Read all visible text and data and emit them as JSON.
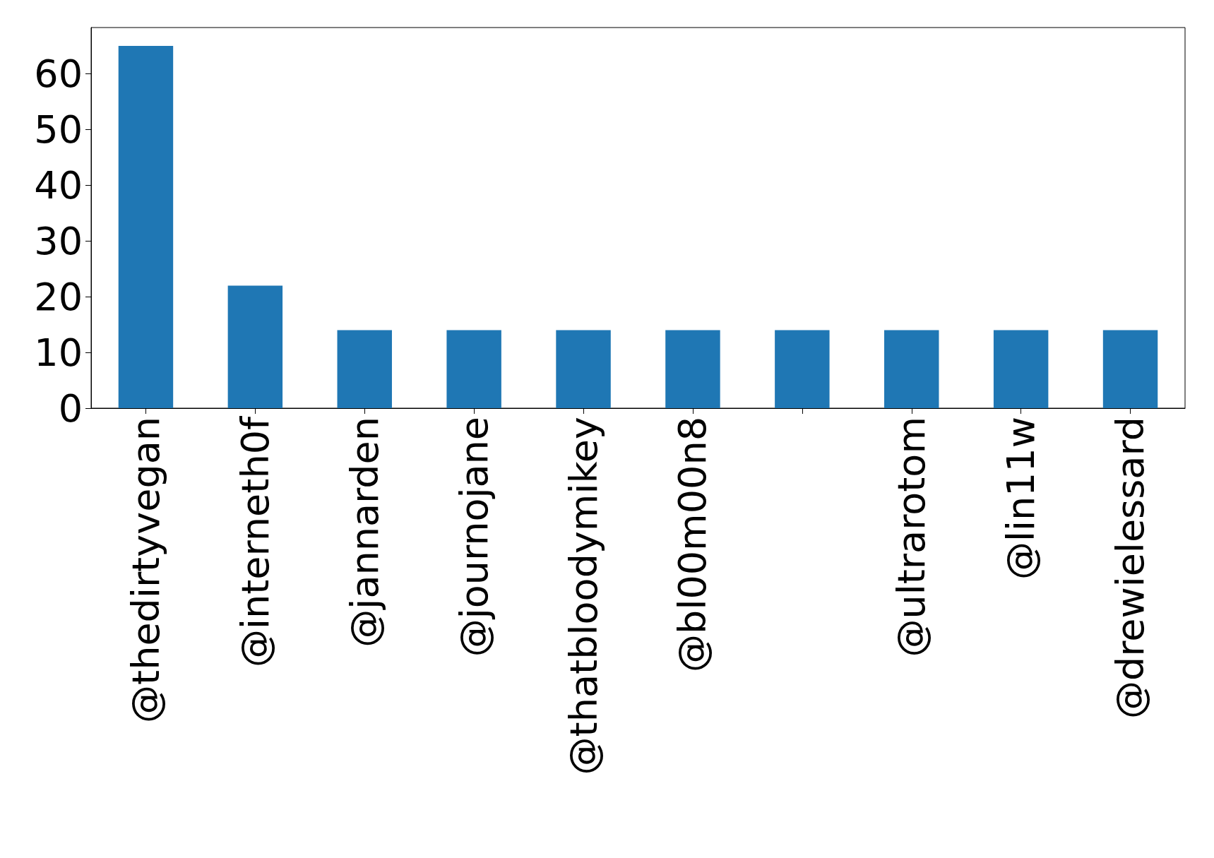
{
  "chart_data": {
    "type": "bar",
    "categories": [
      "@thedirtyvegan",
      "@interneth0f",
      "@jannarden",
      "@journojane",
      "@thatbloodymikey",
      "@bl00m00n8",
      null,
      "@ultrarotom",
      "@lin11w",
      "@drewielessard"
    ],
    "values": [
      65,
      22,
      14,
      14,
      14,
      14,
      14,
      14,
      14,
      14
    ],
    "color": "#1f77b4",
    "ylim": [
      0,
      68.3
    ],
    "yticks": [
      0,
      10,
      20,
      30,
      40,
      50,
      60
    ],
    "grid": false
  }
}
